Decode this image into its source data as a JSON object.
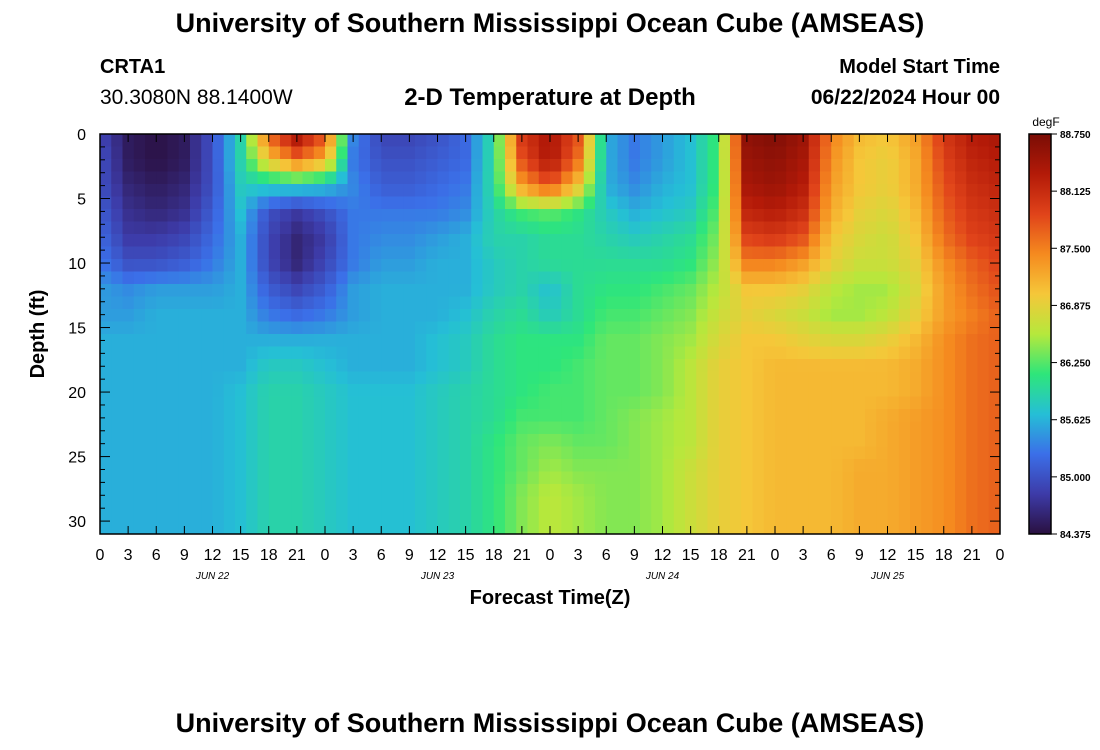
{
  "header": {
    "title": "University of Southern Mississippi Ocean Cube (AMSEAS)",
    "station": "CRTA1",
    "coords": "30.3080N  88.1400W",
    "subtitle": "2-D Temperature at Depth",
    "model_start_label": "Model Start Time",
    "model_start_value": "06/22/2024 Hour 00"
  },
  "footer": {
    "title": "University of Southern Mississippi Ocean Cube (AMSEAS)"
  },
  "chart_data": {
    "type": "heatmap",
    "title": "2-D Temperature at Depth",
    "xlabel": "Forecast Time(Z)",
    "ylabel": "Depth (ft)",
    "x_range_hours": [
      0,
      96
    ],
    "ylim": [
      0,
      31
    ],
    "x_tick_labels": [
      "0",
      "3",
      "6",
      "9",
      "12",
      "15",
      "18",
      "21",
      "0",
      "3",
      "6",
      "9",
      "12",
      "15",
      "18",
      "21",
      "0",
      "3",
      "6",
      "9",
      "12",
      "15",
      "18",
      "21",
      "0",
      "3",
      "6",
      "9",
      "12",
      "15",
      "18",
      "21",
      "0"
    ],
    "y_ticks": [
      0,
      5,
      10,
      15,
      20,
      25,
      30
    ],
    "y_tick_labels": [
      "0",
      "5",
      "10",
      "15",
      "20",
      "25",
      "30"
    ],
    "day_labels": [
      {
        "label": "JUN 22",
        "hour": 12
      },
      {
        "label": "JUN 23",
        "hour": 36
      },
      {
        "label": "JUN 24",
        "hour": 60
      },
      {
        "label": "JUN 25",
        "hour": 84
      }
    ],
    "colorbar": {
      "unit": "degF",
      "min": 84.375,
      "max": 88.75,
      "ticks": [
        "88.750",
        "88.125",
        "87.500",
        "86.875",
        "86.250",
        "85.625",
        "85.000",
        "84.375"
      ],
      "colors": [
        "#2a1040",
        "#3d3ba8",
        "#3b6fe8",
        "#25bfd6",
        "#2ee67a",
        "#b6e83c",
        "#f5c739",
        "#f58a1f",
        "#e0431a",
        "#b31a08",
        "#7a0d06"
      ]
    },
    "grid_hours": [
      0,
      3,
      6,
      9,
      12,
      15,
      18,
      21,
      24,
      27,
      30,
      33,
      36,
      39,
      42,
      45,
      48,
      51,
      54,
      57,
      60,
      63,
      66,
      69,
      72,
      75,
      78,
      81,
      84,
      87,
      90,
      93,
      96
    ],
    "grid_depths": [
      0,
      2,
      4,
      6,
      8,
      10,
      12,
      14,
      16,
      18,
      20,
      22,
      24,
      26,
      28,
      30
    ],
    "values": [
      [
        84.9,
        84.5,
        84.4,
        84.5,
        85.0,
        85.9,
        87.7,
        88.5,
        87.8,
        85.4,
        84.9,
        84.9,
        85.0,
        85.2,
        86.0,
        88.0,
        88.4,
        87.8,
        85.6,
        85.3,
        85.5,
        85.7,
        86.2,
        88.6,
        88.7,
        88.5,
        87.5,
        87.1,
        87.0,
        87.3,
        88.0,
        88.3,
        88.4
      ],
      [
        85.0,
        84.5,
        84.4,
        84.5,
        85.0,
        85.9,
        87.0,
        87.6,
        87.2,
        85.3,
        85.0,
        85.0,
        85.1,
        85.2,
        86.0,
        87.8,
        88.4,
        87.6,
        85.6,
        85.3,
        85.5,
        85.7,
        86.2,
        88.5,
        88.6,
        88.4,
        87.4,
        87.0,
        86.9,
        87.2,
        87.9,
        88.2,
        88.3
      ],
      [
        85.0,
        84.6,
        84.5,
        84.6,
        85.0,
        85.8,
        85.8,
        85.8,
        85.7,
        85.4,
        85.1,
        85.1,
        85.2,
        85.3,
        86.0,
        87.3,
        87.8,
        87.0,
        85.6,
        85.4,
        85.6,
        85.7,
        86.2,
        88.4,
        88.5,
        88.3,
        87.3,
        87.0,
        86.9,
        87.2,
        87.8,
        88.1,
        88.2
      ],
      [
        85.1,
        84.7,
        84.6,
        84.7,
        85.1,
        85.7,
        85.0,
        84.8,
        85.0,
        85.3,
        85.3,
        85.3,
        85.3,
        85.4,
        85.9,
        86.2,
        86.3,
        86.1,
        85.8,
        85.6,
        85.7,
        85.8,
        86.3,
        88.2,
        88.3,
        88.1,
        87.2,
        86.9,
        86.8,
        87.1,
        87.7,
        88.0,
        88.1
      ],
      [
        85.2,
        84.8,
        84.8,
        84.9,
        85.2,
        85.6,
        84.9,
        84.6,
        84.8,
        85.3,
        85.4,
        85.4,
        85.5,
        85.6,
        85.9,
        85.9,
        86.0,
        86.0,
        85.9,
        85.8,
        85.9,
        86.0,
        86.4,
        87.9,
        88.0,
        87.8,
        87.0,
        86.8,
        86.7,
        87.0,
        87.6,
        87.9,
        88.0
      ],
      [
        85.3,
        85.0,
        85.0,
        85.1,
        85.3,
        85.6,
        84.9,
        84.6,
        84.9,
        85.3,
        85.5,
        85.5,
        85.6,
        85.6,
        85.8,
        85.9,
        86.0,
        86.0,
        86.0,
        86.0,
        86.0,
        86.1,
        86.5,
        87.5,
        87.5,
        87.3,
        86.9,
        86.7,
        86.7,
        86.9,
        87.4,
        87.7,
        87.9
      ],
      [
        85.5,
        85.4,
        85.5,
        85.5,
        85.5,
        85.6,
        85.1,
        84.9,
        85.1,
        85.5,
        85.6,
        85.6,
        85.6,
        85.6,
        85.8,
        85.9,
        85.7,
        86.0,
        86.1,
        86.1,
        86.2,
        86.3,
        86.6,
        87.0,
        87.0,
        86.9,
        86.6,
        86.5,
        86.5,
        86.8,
        87.3,
        87.6,
        87.8
      ],
      [
        85.5,
        85.5,
        85.6,
        85.6,
        85.6,
        85.6,
        85.3,
        85.2,
        85.3,
        85.5,
        85.6,
        85.6,
        85.6,
        85.7,
        85.9,
        86.0,
        85.8,
        86.0,
        86.2,
        86.2,
        86.3,
        86.4,
        86.7,
        86.9,
        86.8,
        86.7,
        86.5,
        86.5,
        86.6,
        86.9,
        87.3,
        87.5,
        87.7
      ],
      [
        85.6,
        85.6,
        85.6,
        85.6,
        85.6,
        85.6,
        85.6,
        85.6,
        85.6,
        85.6,
        85.6,
        85.6,
        85.7,
        85.8,
        86.0,
        86.1,
        86.1,
        86.1,
        86.3,
        86.3,
        86.4,
        86.5,
        86.8,
        87.0,
        87.0,
        86.9,
        86.8,
        86.8,
        86.9,
        87.1,
        87.4,
        87.6,
        87.7
      ],
      [
        85.6,
        85.6,
        85.6,
        85.6,
        85.6,
        85.6,
        85.8,
        85.8,
        85.7,
        85.6,
        85.6,
        85.6,
        85.7,
        85.8,
        86.0,
        86.1,
        86.1,
        86.2,
        86.3,
        86.3,
        86.4,
        86.6,
        86.9,
        87.0,
        87.1,
        87.1,
        87.1,
        87.1,
        87.1,
        87.2,
        87.4,
        87.6,
        87.7
      ],
      [
        85.6,
        85.6,
        85.6,
        85.6,
        85.6,
        85.7,
        85.9,
        85.9,
        85.8,
        85.7,
        85.7,
        85.7,
        85.8,
        85.9,
        86.0,
        86.1,
        86.2,
        86.2,
        86.3,
        86.3,
        86.4,
        86.6,
        86.9,
        87.0,
        87.1,
        87.1,
        87.1,
        87.1,
        87.1,
        87.2,
        87.4,
        87.6,
        87.7
      ],
      [
        85.6,
        85.6,
        85.6,
        85.6,
        85.6,
        85.7,
        85.9,
        85.9,
        85.8,
        85.7,
        85.7,
        85.7,
        85.8,
        85.9,
        86.0,
        86.2,
        86.2,
        86.2,
        86.3,
        86.4,
        86.5,
        86.6,
        86.9,
        87.0,
        87.1,
        87.1,
        87.1,
        87.1,
        87.2,
        87.3,
        87.4,
        87.6,
        87.7
      ],
      [
        85.6,
        85.6,
        85.6,
        85.6,
        85.6,
        85.7,
        85.9,
        85.9,
        85.8,
        85.7,
        85.7,
        85.7,
        85.8,
        85.9,
        86.1,
        86.3,
        86.4,
        86.3,
        86.3,
        86.4,
        86.5,
        86.6,
        86.9,
        87.0,
        87.1,
        87.1,
        87.1,
        87.1,
        87.2,
        87.3,
        87.4,
        87.6,
        87.7
      ],
      [
        85.6,
        85.6,
        85.6,
        85.6,
        85.6,
        85.7,
        85.9,
        85.9,
        85.8,
        85.7,
        85.7,
        85.7,
        85.8,
        85.9,
        86.1,
        86.3,
        86.5,
        86.4,
        86.4,
        86.4,
        86.5,
        86.7,
        86.9,
        87.0,
        87.1,
        87.1,
        87.1,
        87.2,
        87.2,
        87.3,
        87.4,
        87.6,
        87.7
      ],
      [
        85.6,
        85.6,
        85.6,
        85.6,
        85.6,
        85.7,
        85.9,
        85.9,
        85.8,
        85.7,
        85.7,
        85.7,
        85.8,
        85.9,
        86.1,
        86.4,
        86.6,
        86.5,
        86.4,
        86.4,
        86.5,
        86.7,
        86.9,
        87.0,
        87.1,
        87.1,
        87.1,
        87.2,
        87.2,
        87.3,
        87.4,
        87.6,
        87.7
      ],
      [
        85.6,
        85.6,
        85.6,
        85.6,
        85.6,
        85.7,
        85.9,
        85.9,
        85.8,
        85.7,
        85.7,
        85.7,
        85.8,
        85.9,
        86.1,
        86.4,
        86.6,
        86.5,
        86.4,
        86.4,
        86.5,
        86.7,
        86.9,
        87.0,
        87.1,
        87.1,
        87.1,
        87.2,
        87.2,
        87.3,
        87.4,
        87.6,
        87.7
      ]
    ]
  }
}
